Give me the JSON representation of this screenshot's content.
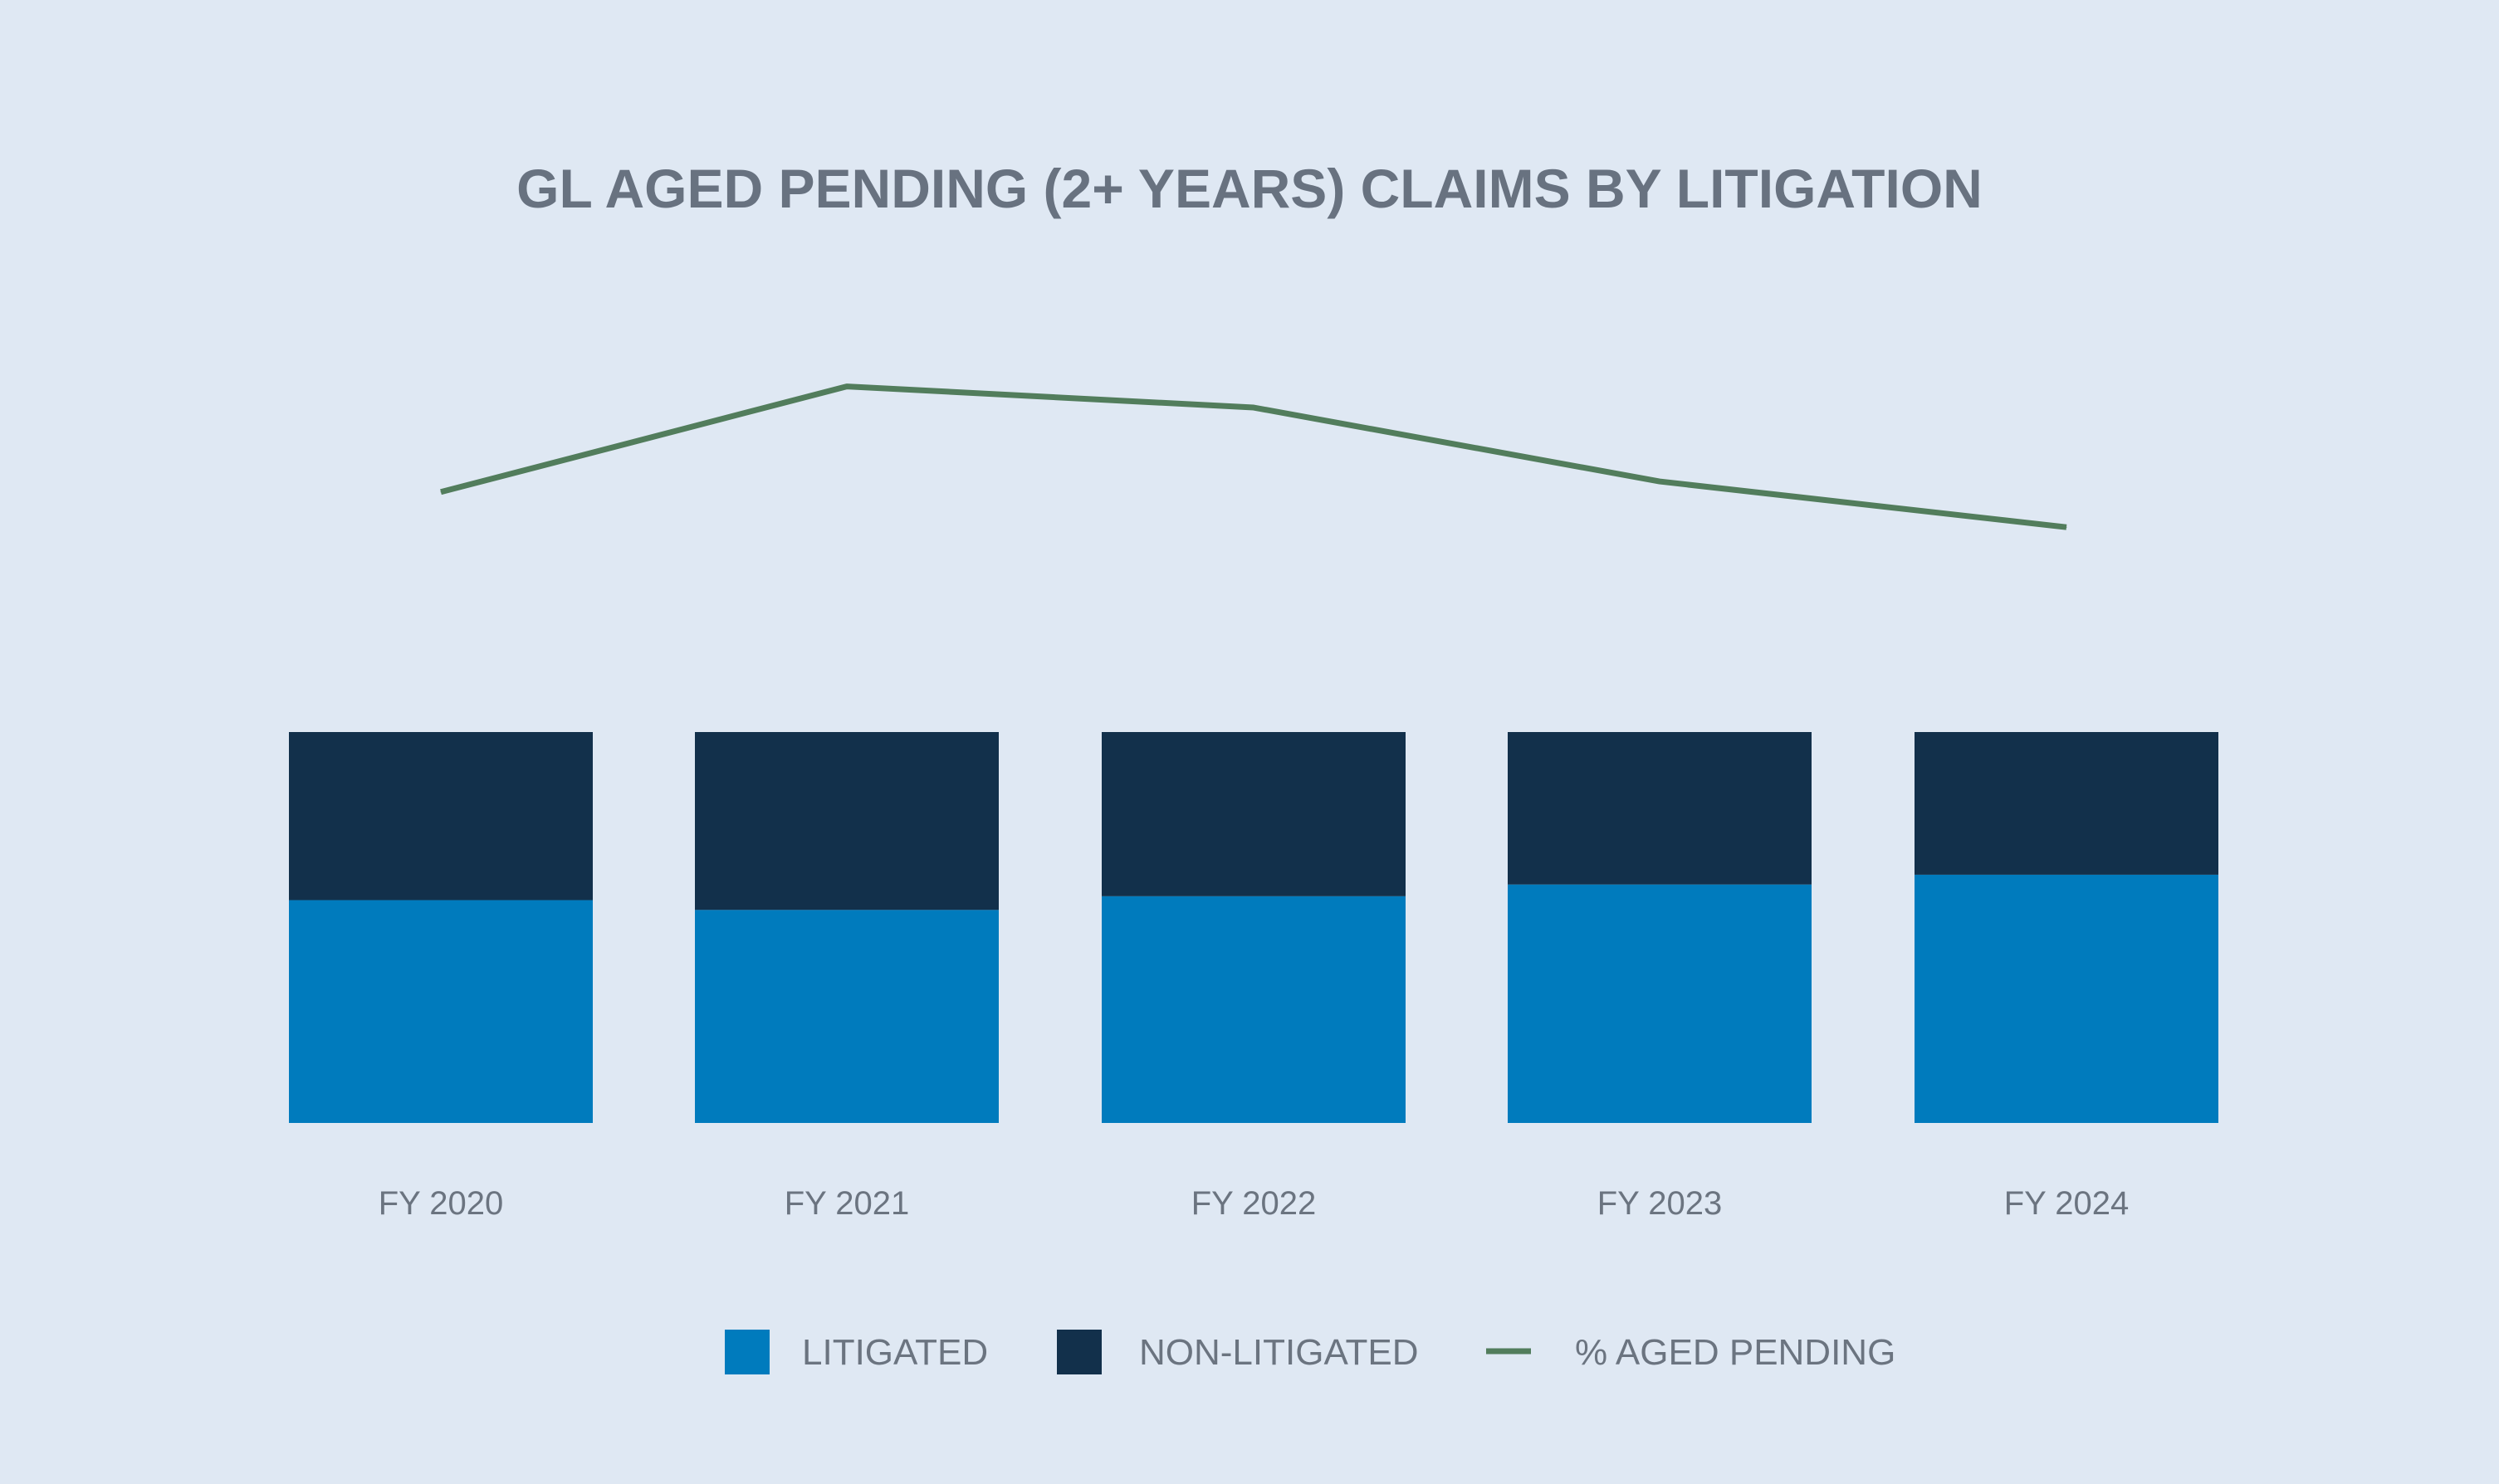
{
  "chart_data": {
    "type": "bar",
    "stacked": true,
    "title": "GL AGED PENDING (2+ YEARS) CLAIMS BY LITIGATION",
    "categories": [
      "FY 2020",
      "FY 2021",
      "FY 2022",
      "FY 2023",
      "FY 2024"
    ],
    "series": [
      {
        "name": "LITIGATED",
        "type": "bar",
        "color": "#007bbd",
        "values": [
          57,
          54.5,
          58,
          61,
          63.5
        ]
      },
      {
        "name": "NON-LITIGATED",
        "type": "bar",
        "color": "#12304b",
        "values": [
          43,
          45.5,
          42,
          39,
          36.5
        ]
      },
      {
        "name": "% AGED PENDING",
        "type": "line",
        "color": "#527d5c",
        "values": [
          31,
          37,
          35.8,
          31.6,
          29
        ]
      }
    ],
    "ylim": [
      0,
      100
    ],
    "line_ylim": [
      0,
      50
    ],
    "grid": false,
    "legend_position": "bottom"
  }
}
